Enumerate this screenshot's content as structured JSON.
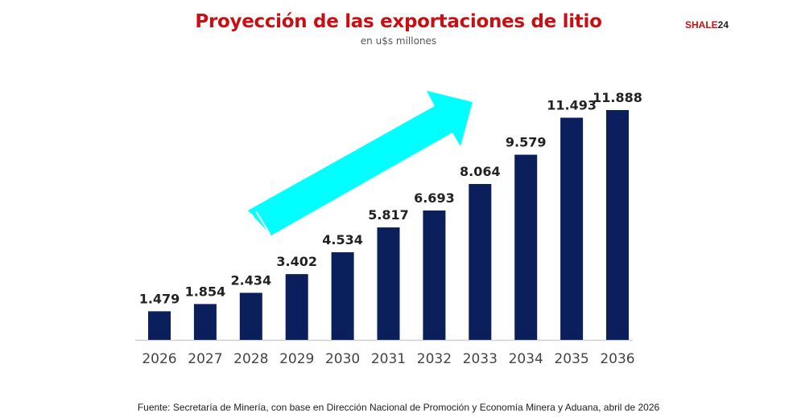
{
  "chart_data": {
    "type": "bar",
    "title": "Proyección de las exportaciones de litio",
    "subtitle": "en u$s millones",
    "categories": [
      "2026",
      "2027",
      "2028",
      "2029",
      "2030",
      "2031",
      "2032",
      "2033",
      "2034",
      "2035",
      "2036"
    ],
    "values": [
      1479,
      1854,
      2434,
      3402,
      4534,
      5817,
      6693,
      8064,
      9579,
      11493,
      11888
    ],
    "data_labels": [
      "1.479",
      "1.854",
      "2.434",
      "3.402",
      "4.534",
      "5.817",
      "6.693",
      "8.064",
      "9.579",
      "11.493",
      "11.888"
    ],
    "xlabel": "",
    "ylabel": "",
    "ylim": [
      0,
      11888
    ],
    "grid": false,
    "bar_color": "#0a1f5c",
    "arrow_color": "#00ffff",
    "annotation": "upward-trend-arrow"
  },
  "logo": {
    "text_red": "SHALE",
    "text_dark": "24"
  },
  "source": "Fuente: Secretaría de Minería, con base en Dirección Nacional de Promoción y Economía Minera y Aduana, abril de 2026",
  "colors": {
    "title": "#c80f14"
  }
}
